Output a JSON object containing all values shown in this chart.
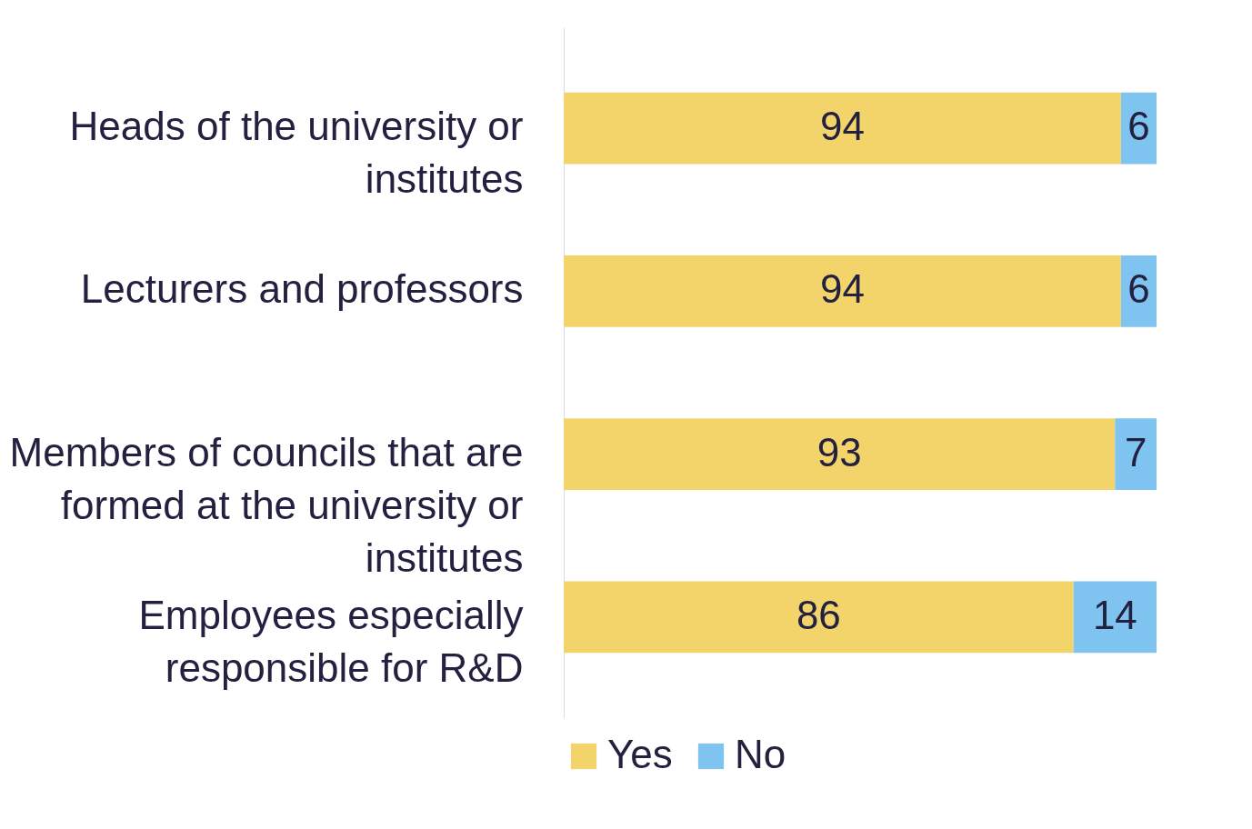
{
  "chart_data": {
    "type": "bar",
    "orientation": "horizontal",
    "stacked": true,
    "data_labels": true,
    "legend": "bottom",
    "grid": false,
    "tick_labels": "y",
    "categories": [
      "Heads of the university or institutes",
      "Lecturers and professors",
      "Members of councils that are formed at the university or institutes",
      "Employees especially responsible for R&D"
    ],
    "xlim": [
      0,
      100
    ],
    "series": [
      {
        "name": "Yes",
        "color": "#f2d46b",
        "values": [
          94,
          94,
          93,
          86
        ]
      },
      {
        "name": "No",
        "color": "#7fc4f0",
        "values": [
          6,
          6,
          7,
          14
        ]
      }
    ]
  }
}
